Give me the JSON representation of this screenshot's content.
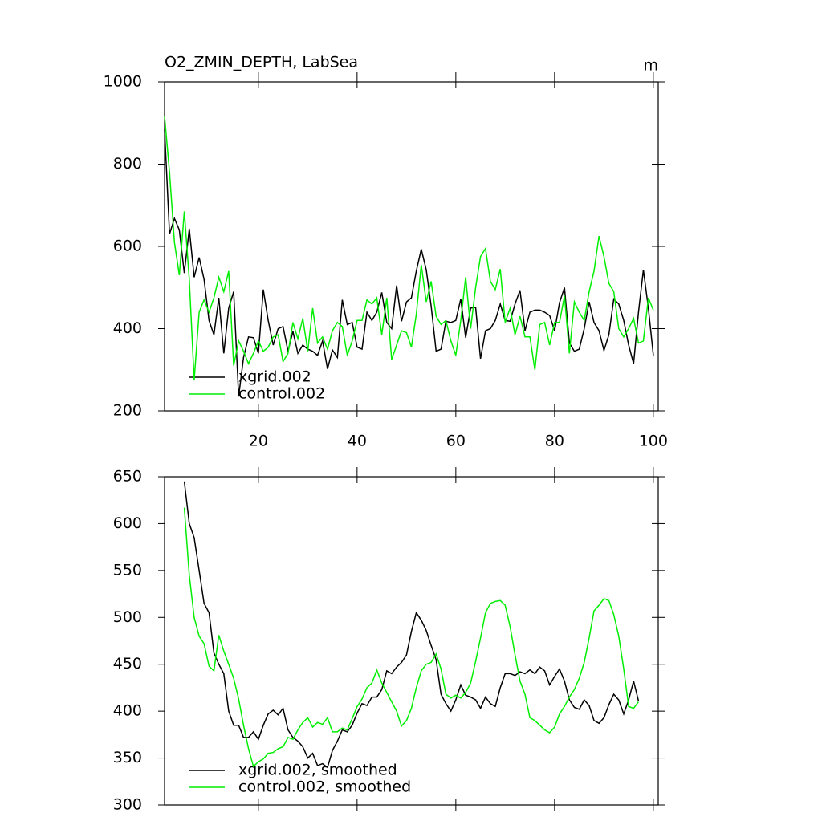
{
  "chart_data": [
    {
      "type": "line",
      "title": "O2_ZMIN_DEPTH, LabSea",
      "units": "m",
      "x": [
        1,
        2,
        3,
        4,
        5,
        6,
        7,
        8,
        9,
        10,
        11,
        12,
        13,
        14,
        15,
        16,
        17,
        18,
        19,
        20,
        21,
        22,
        23,
        24,
        25,
        26,
        27,
        28,
        29,
        30,
        31,
        32,
        33,
        34,
        35,
        36,
        37,
        38,
        39,
        40,
        41,
        42,
        43,
        44,
        45,
        46,
        47,
        48,
        49,
        50,
        51,
        52,
        53,
        54,
        55,
        56,
        57,
        58,
        59,
        60,
        61,
        62,
        63,
        64,
        65,
        66,
        67,
        68,
        69,
        70,
        71,
        72,
        73,
        74,
        75,
        76,
        77,
        78,
        79,
        80,
        81,
        82,
        83,
        84,
        85,
        86,
        87,
        88,
        89,
        90,
        91,
        92,
        93,
        94,
        95,
        96,
        97,
        98,
        99,
        100
      ],
      "series": [
        {
          "name": "xgrid.002",
          "color": "#000000",
          "values": [
            885,
            630,
            668,
            640,
            535,
            643,
            525,
            573,
            520,
            420,
            385,
            475,
            340,
            450,
            490,
            235,
            330,
            380,
            378,
            340,
            495,
            420,
            360,
            400,
            405,
            345,
            393,
            340,
            360,
            350,
            345,
            335,
            370,
            302,
            348,
            330,
            470,
            410,
            415,
            355,
            350,
            440,
            420,
            440,
            488,
            415,
            400,
            505,
            418,
            465,
            475,
            540,
            593,
            543,
            455,
            345,
            350,
            418,
            415,
            420,
            472,
            378,
            450,
            452,
            327,
            395,
            400,
            420,
            460,
            420,
            418,
            460,
            493,
            395,
            440,
            445,
            445,
            440,
            432,
            395,
            463,
            500,
            365,
            345,
            350,
            400,
            465,
            415,
            395,
            347,
            385,
            472,
            460,
            420,
            360,
            315,
            440,
            543,
            450,
            335
          ]
        },
        {
          "name": "control.002",
          "color": "#00ee00",
          "values": [
            917,
            780,
            610,
            530,
            685,
            520,
            275,
            440,
            470,
            440,
            475,
            525,
            490,
            540,
            310,
            370,
            345,
            315,
            340,
            370,
            345,
            355,
            380,
            385,
            320,
            340,
            415,
            375,
            425,
            345,
            450,
            365,
            380,
            350,
            395,
            415,
            405,
            335,
            370,
            420,
            420,
            470,
            460,
            475,
            385,
            475,
            325,
            360,
            395,
            390,
            355,
            435,
            555,
            465,
            515,
            430,
            410,
            420,
            370,
            335,
            420,
            525,
            400,
            500,
            575,
            595,
            515,
            495,
            545,
            415,
            450,
            385,
            430,
            380,
            380,
            300,
            410,
            415,
            360,
            415,
            415,
            480,
            340,
            465,
            440,
            420,
            490,
            540,
            625,
            575,
            510,
            490,
            400,
            380,
            400,
            425,
            365,
            370,
            475,
            445
          ]
        }
      ],
      "xlim": [
        1,
        101
      ],
      "xticks": [
        20,
        40,
        60,
        80,
        100
      ],
      "ylim": [
        200,
        1000
      ],
      "yticks": [
        200,
        400,
        600,
        800,
        1000
      ]
    },
    {
      "type": "line",
      "x": [
        1,
        2,
        3,
        4,
        5,
        6,
        7,
        8,
        9,
        10,
        11,
        12,
        13,
        14,
        15,
        16,
        17,
        18,
        19,
        20,
        21,
        22,
        23,
        24,
        25,
        26,
        27,
        28,
        29,
        30,
        31,
        32,
        33,
        34,
        35,
        36,
        37,
        38,
        39,
        40,
        41,
        42,
        43,
        44,
        45,
        46,
        47,
        48,
        49,
        50,
        51,
        52,
        53,
        54,
        55,
        56,
        57,
        58,
        59,
        60,
        61,
        62,
        63,
        64,
        65,
        66,
        67,
        68,
        69,
        70,
        71,
        72,
        73,
        74,
        75,
        76,
        77,
        78,
        79,
        80,
        81,
        82,
        83,
        84,
        85,
        86,
        87,
        88,
        89,
        90,
        91,
        92,
        93,
        94,
        95,
        96,
        97,
        98,
        99,
        100
      ],
      "series": [
        {
          "name": "xgrid.002, smoothed",
          "color": "#000000",
          "values": [
            null,
            null,
            null,
            null,
            645,
            600,
            585,
            550,
            515,
            505,
            462,
            450,
            440,
            400,
            385,
            385,
            372,
            372,
            378,
            370,
            385,
            397,
            401,
            396,
            403,
            380,
            372,
            368,
            362,
            350,
            355,
            342,
            344,
            340,
            358,
            368,
            380,
            378,
            385,
            398,
            408,
            406,
            415,
            415,
            423,
            443,
            440,
            447,
            452,
            460,
            485,
            505,
            497,
            486,
            470,
            455,
            418,
            408,
            400,
            412,
            428,
            417,
            415,
            412,
            403,
            415,
            408,
            405,
            425,
            440,
            440,
            438,
            442,
            440,
            444,
            440,
            447,
            443,
            428,
            437,
            445,
            432,
            412,
            404,
            402,
            412,
            406,
            390,
            387,
            393,
            407,
            418,
            412,
            397,
            412,
            432,
            411,
            null,
            null,
            null
          ]
        },
        {
          "name": "control.002, smoothed",
          "color": "#00ee00",
          "values": [
            null,
            null,
            null,
            null,
            617,
            545,
            500,
            480,
            472,
            448,
            443,
            481,
            464,
            450,
            435,
            413,
            385,
            360,
            341,
            346,
            349,
            355,
            356,
            360,
            362,
            372,
            370,
            380,
            388,
            393,
            383,
            388,
            386,
            393,
            378,
            378,
            382,
            380,
            392,
            405,
            413,
            425,
            430,
            444,
            430,
            420,
            410,
            400,
            384,
            390,
            403,
            425,
            443,
            450,
            452,
            461,
            445,
            418,
            414,
            417,
            414,
            420,
            430,
            453,
            478,
            505,
            515,
            517,
            518,
            513,
            490,
            460,
            432,
            418,
            393,
            390,
            385,
            380,
            377,
            383,
            397,
            405,
            415,
            423,
            435,
            452,
            478,
            507,
            513,
            520,
            518,
            503,
            480,
            445,
            405,
            403,
            410,
            null,
            null,
            null
          ]
        }
      ],
      "xlim": [
        1,
        101
      ],
      "ylim": [
        300,
        650
      ],
      "yticks": [
        300,
        350,
        400,
        450,
        500,
        550,
        600,
        650
      ]
    }
  ]
}
